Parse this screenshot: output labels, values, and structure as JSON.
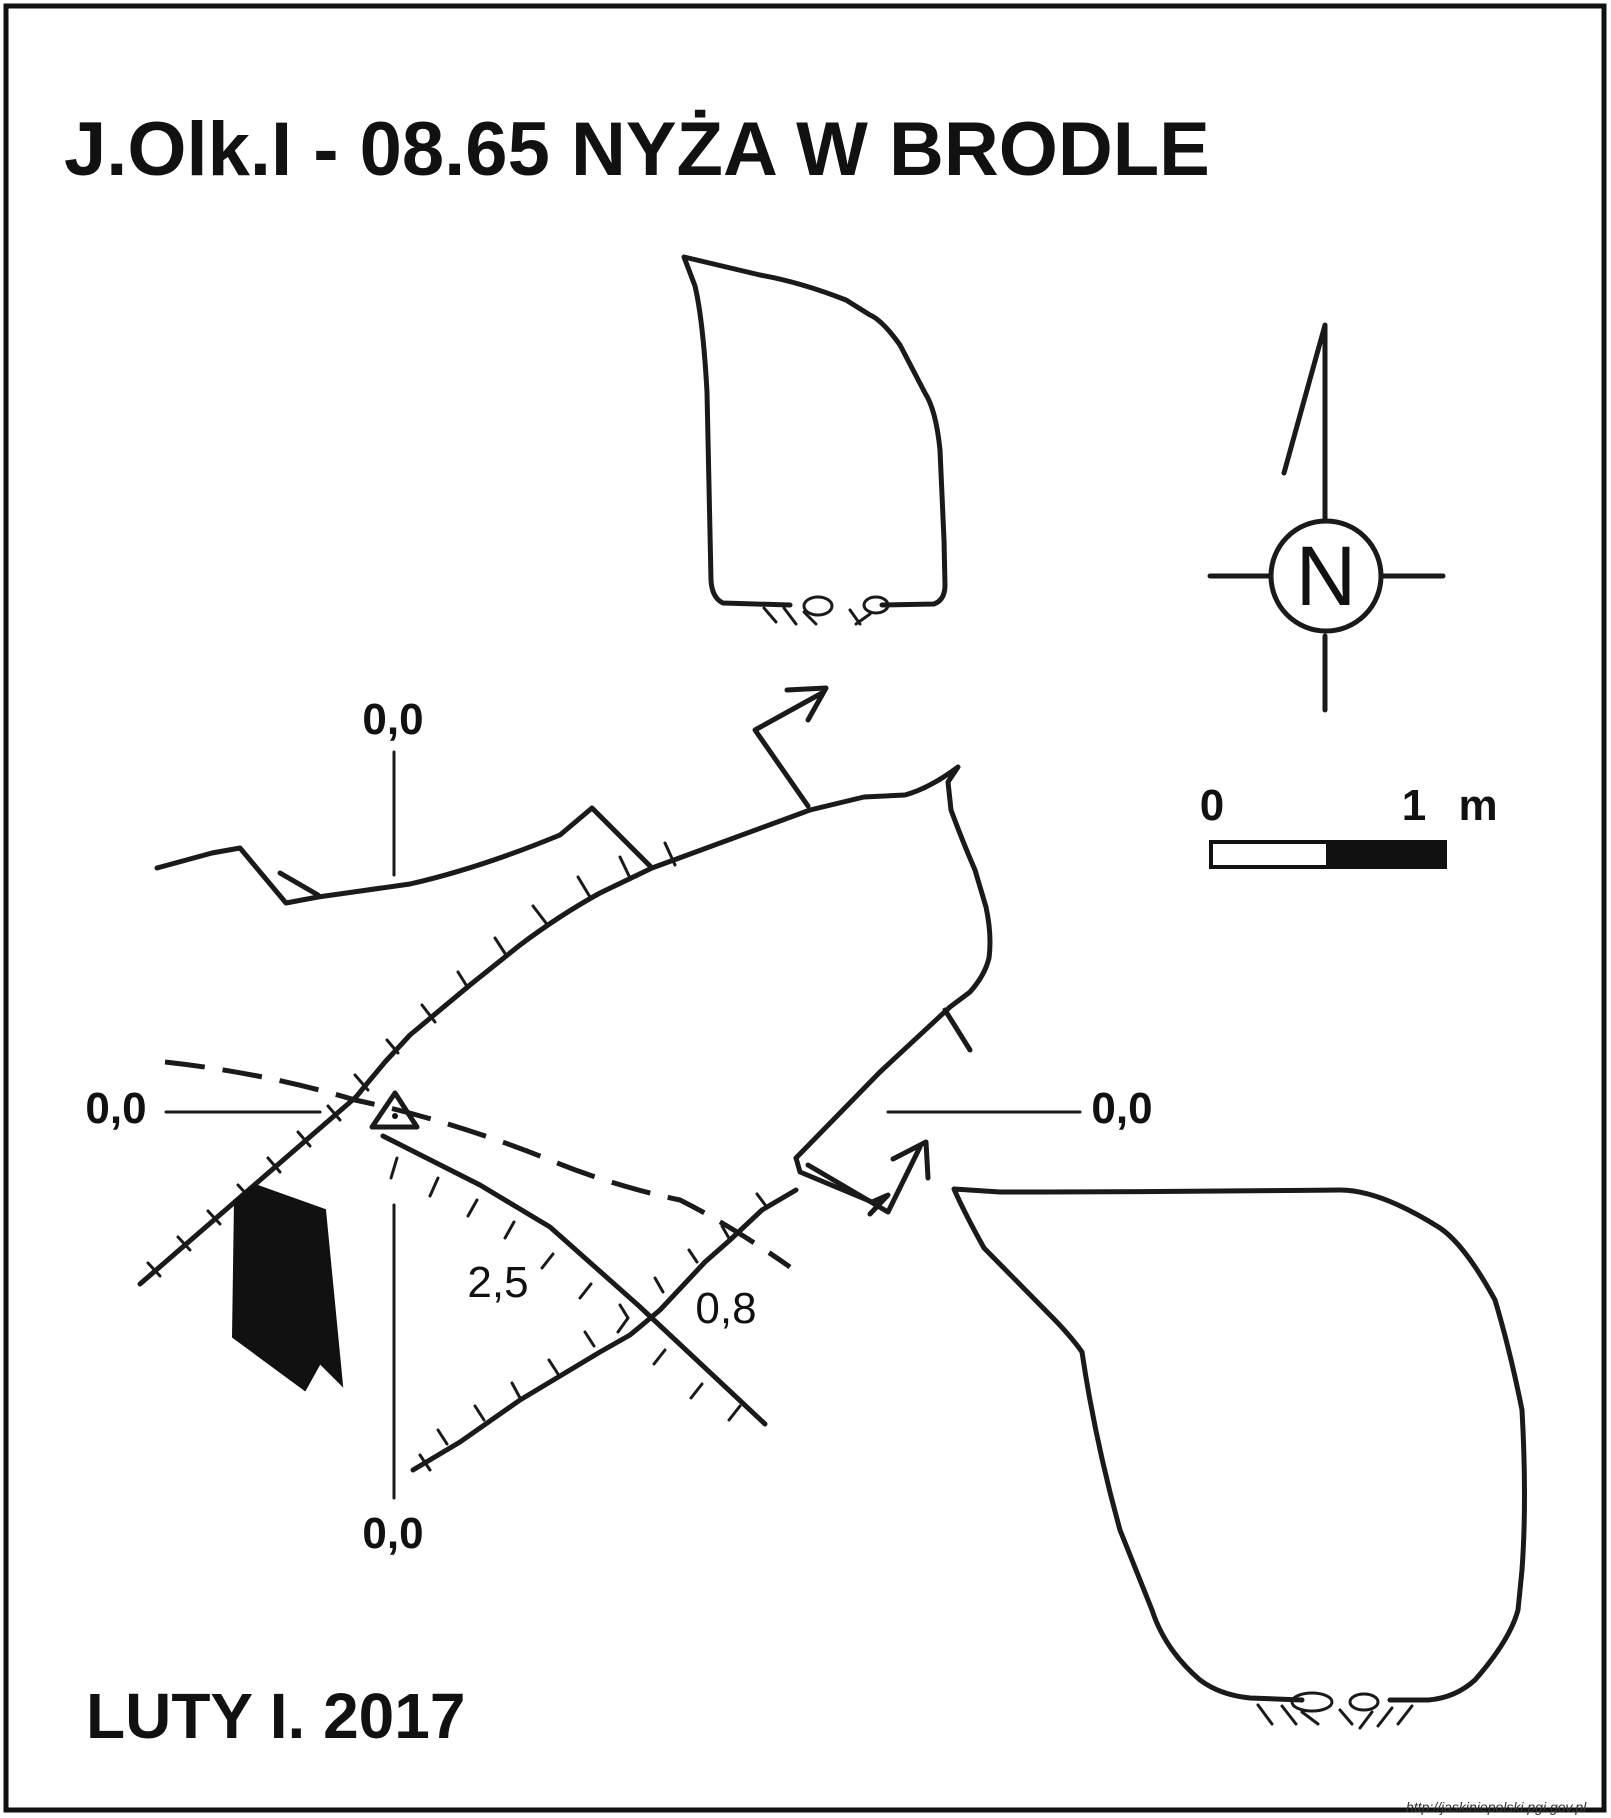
{
  "title": "J.Olk.I - 08.65  NYŻA W BRODLE",
  "date": "LUTY I. 2017",
  "source_url": "http://jaskiniepolski.pgi.gov.pl",
  "north_arrow": {
    "letter": "N"
  },
  "scale_bar": {
    "start_label": "0",
    "end_label": "1",
    "unit": "m"
  },
  "section_levels": {
    "top": "0,0",
    "left": "0,0",
    "right": "0,0",
    "bottom": "0,0"
  },
  "depths": {
    "floor_a": "2,5",
    "floor_b": "0,8"
  }
}
